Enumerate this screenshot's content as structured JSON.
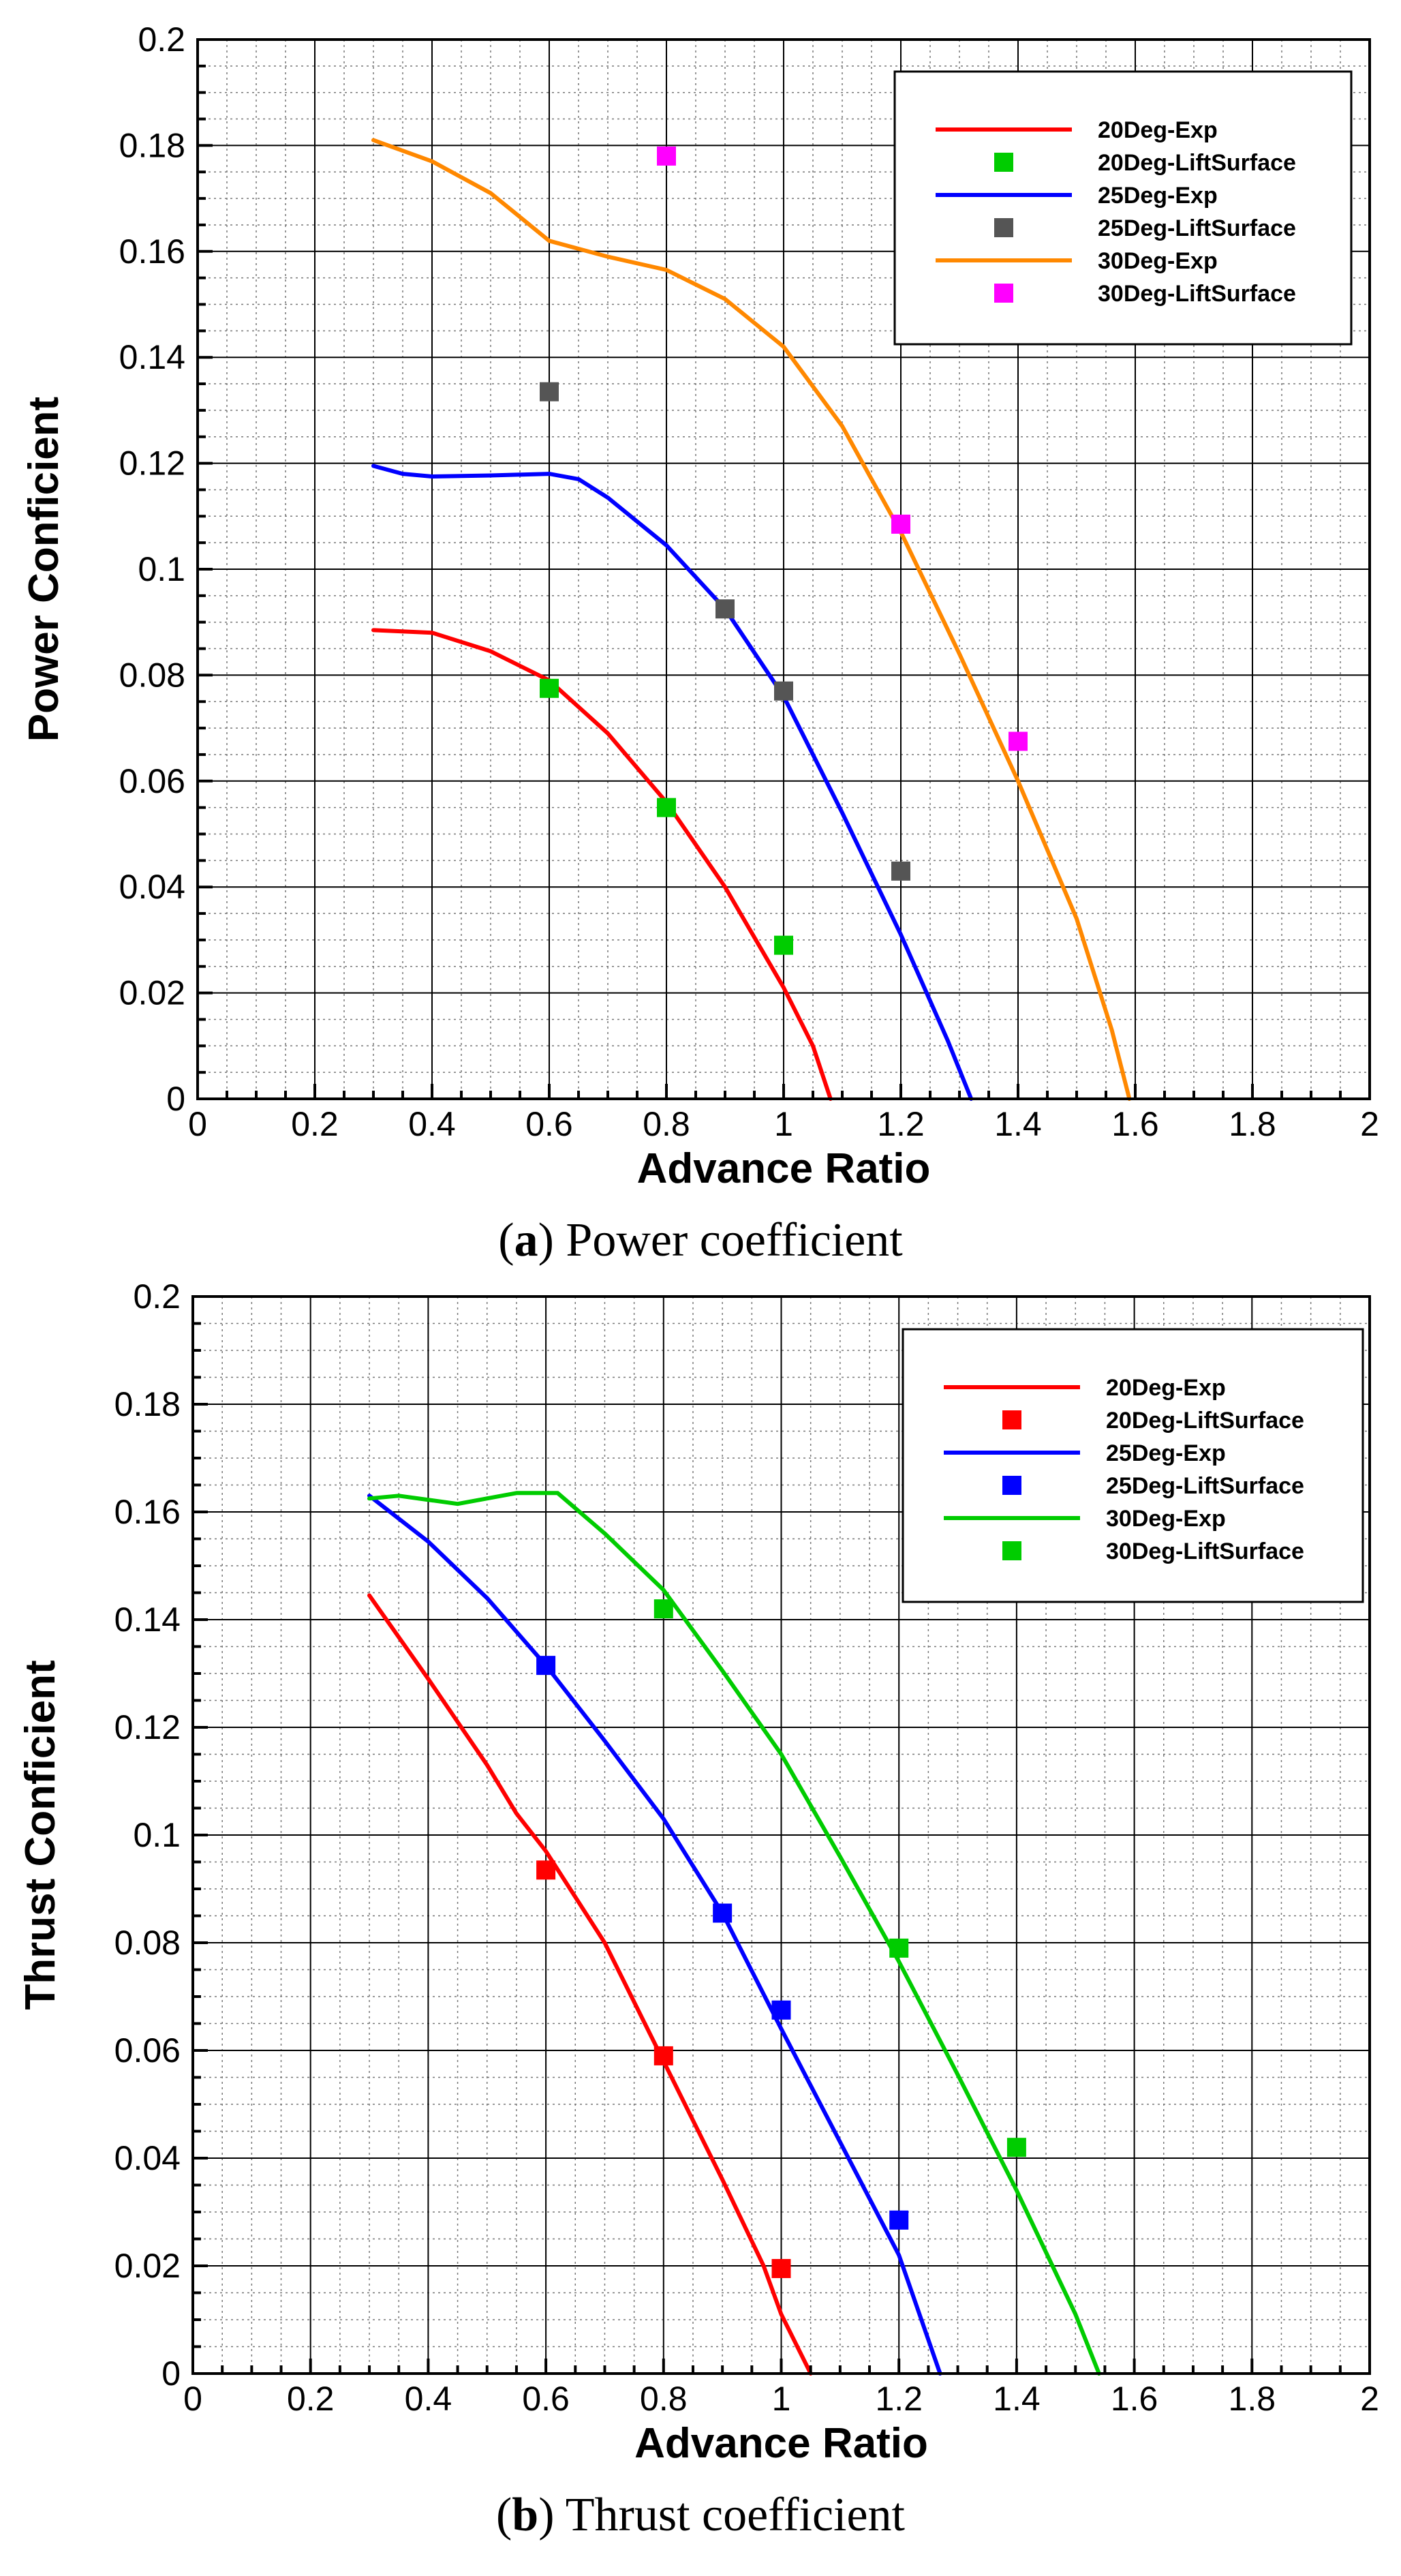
{
  "chart_data": [
    {
      "type": "scatter",
      "id": "a",
      "caption_letter": "a",
      "caption_text": "Power coefficient",
      "xlabel": "Advance Ratio",
      "ylabel": "Power Conficient",
      "xlim": [
        0,
        2
      ],
      "ylim": [
        0,
        0.2
      ],
      "xticks": [
        "0",
        "0.2",
        "0.4",
        "0.6",
        "0.8",
        "1",
        "1.2",
        "1.4",
        "1.6",
        "1.8",
        "2"
      ],
      "yticks": [
        "0",
        "0.02",
        "0.04",
        "0.06",
        "0.08",
        "0.1",
        "0.12",
        "0.14",
        "0.16",
        "0.18",
        "0.2"
      ],
      "grid": true,
      "legend_position": "top-right",
      "series": [
        {
          "name": "20Deg-Exp",
          "kind": "line",
          "color": "#ff0000",
          "points": [
            [
              0.3,
              0.0885
            ],
            [
              0.4,
              0.088
            ],
            [
              0.5,
              0.0845
            ],
            [
              0.6,
              0.079
            ],
            [
              0.7,
              0.069
            ],
            [
              0.8,
              0.056
            ],
            [
              0.9,
              0.04
            ],
            [
              1.0,
              0.021
            ],
            [
              1.05,
              0.01
            ],
            [
              1.08,
              0.0
            ]
          ]
        },
        {
          "name": "20Deg-LiftSurface",
          "kind": "marker",
          "color": "#00cc00",
          "points": [
            [
              0.6,
              0.0775
            ],
            [
              0.8,
              0.055
            ],
            [
              1.0,
              0.029
            ]
          ]
        },
        {
          "name": "25Deg-Exp",
          "kind": "line",
          "color": "#0000ff",
          "points": [
            [
              0.3,
              0.1195
            ],
            [
              0.35,
              0.118
            ],
            [
              0.4,
              0.1175
            ],
            [
              0.5,
              0.1177
            ],
            [
              0.6,
              0.118
            ],
            [
              0.65,
              0.117
            ],
            [
              0.7,
              0.1135
            ],
            [
              0.8,
              0.1045
            ],
            [
              0.9,
              0.0925
            ],
            [
              1.0,
              0.076
            ],
            [
              1.1,
              0.054
            ],
            [
              1.2,
              0.031
            ],
            [
              1.28,
              0.011
            ],
            [
              1.32,
              0.0
            ]
          ]
        },
        {
          "name": "25Deg-LiftSurface",
          "kind": "marker",
          "color": "#555555",
          "points": [
            [
              0.6,
              0.1335
            ],
            [
              0.9,
              0.0925
            ],
            [
              1.0,
              0.077
            ],
            [
              1.2,
              0.043
            ]
          ]
        },
        {
          "name": "30Deg-Exp",
          "kind": "line",
          "color": "#ff8800",
          "points": [
            [
              0.3,
              0.181
            ],
            [
              0.4,
              0.177
            ],
            [
              0.5,
              0.171
            ],
            [
              0.6,
              0.162
            ],
            [
              0.7,
              0.159
            ],
            [
              0.8,
              0.1565
            ],
            [
              0.9,
              0.151
            ],
            [
              1.0,
              0.142
            ],
            [
              1.1,
              0.127
            ],
            [
              1.2,
              0.107
            ],
            [
              1.3,
              0.084
            ],
            [
              1.4,
              0.06
            ],
            [
              1.5,
              0.034
            ],
            [
              1.56,
              0.013
            ],
            [
              1.59,
              0.0
            ]
          ]
        },
        {
          "name": "30Deg-LiftSurface",
          "kind": "marker",
          "color": "#ff00ff",
          "points": [
            [
              0.8,
              0.178
            ],
            [
              1.2,
              0.1085
            ],
            [
              1.4,
              0.0675
            ]
          ]
        }
      ]
    },
    {
      "type": "scatter",
      "id": "b",
      "caption_letter": "b",
      "caption_text": "Thrust coefficient",
      "xlabel": "Advance Ratio",
      "ylabel": "Thrust Conficient",
      "xlim": [
        0,
        2
      ],
      "ylim": [
        0,
        0.2
      ],
      "xticks": [
        "0",
        "0.2",
        "0.4",
        "0.6",
        "0.8",
        "1",
        "1.2",
        "1.4",
        "1.6",
        "1.8",
        "2"
      ],
      "yticks": [
        "0",
        "0.02",
        "0.04",
        "0.06",
        "0.08",
        "0.1",
        "0.12",
        "0.14",
        "0.16",
        "0.18",
        "0.2"
      ],
      "grid": true,
      "legend_position": "top-right",
      "series": [
        {
          "name": "20Deg-Exp",
          "kind": "line",
          "color": "#ff0000",
          "points": [
            [
              0.3,
              0.1445
            ],
            [
              0.4,
              0.129
            ],
            [
              0.5,
              0.113
            ],
            [
              0.55,
              0.104
            ],
            [
              0.6,
              0.097
            ],
            [
              0.7,
              0.08
            ],
            [
              0.8,
              0.058
            ],
            [
              0.9,
              0.036
            ],
            [
              0.97,
              0.02
            ],
            [
              1.0,
              0.011
            ],
            [
              1.05,
              0.0
            ]
          ]
        },
        {
          "name": "20Deg-LiftSurface",
          "kind": "marker",
          "color": "#ff0000",
          "points": [
            [
              0.6,
              0.0935
            ],
            [
              0.8,
              0.059
            ],
            [
              1.0,
              0.0195
            ]
          ]
        },
        {
          "name": "25Deg-Exp",
          "kind": "line",
          "color": "#0000ff",
          "points": [
            [
              0.3,
              0.163
            ],
            [
              0.4,
              0.1545
            ],
            [
              0.5,
              0.144
            ],
            [
              0.6,
              0.1315
            ],
            [
              0.7,
              0.1175
            ],
            [
              0.8,
              0.103
            ],
            [
              0.9,
              0.0855
            ],
            [
              1.0,
              0.064
            ],
            [
              1.1,
              0.043
            ],
            [
              1.2,
              0.022
            ],
            [
              1.27,
              0.0
            ]
          ]
        },
        {
          "name": "25Deg-LiftSurface",
          "kind": "marker",
          "color": "#0000ff",
          "points": [
            [
              0.6,
              0.1315
            ],
            [
              0.9,
              0.0855
            ],
            [
              1.0,
              0.0675
            ],
            [
              1.2,
              0.0285
            ]
          ]
        },
        {
          "name": "30Deg-Exp",
          "kind": "line",
          "color": "#00cc00",
          "points": [
            [
              0.3,
              0.1625
            ],
            [
              0.35,
              0.163
            ],
            [
              0.45,
              0.1615
            ],
            [
              0.55,
              0.1635
            ],
            [
              0.62,
              0.1635
            ],
            [
              0.7,
              0.156
            ],
            [
              0.8,
              0.1455
            ],
            [
              0.9,
              0.1305
            ],
            [
              1.0,
              0.115
            ],
            [
              1.1,
              0.096
            ],
            [
              1.2,
              0.0765
            ],
            [
              1.3,
              0.0555
            ],
            [
              1.4,
              0.034
            ],
            [
              1.5,
              0.011
            ],
            [
              1.54,
              0.0
            ]
          ]
        },
        {
          "name": "30Deg-LiftSurface",
          "kind": "marker",
          "color": "#00cc00",
          "points": [
            [
              0.8,
              0.142
            ],
            [
              1.2,
              0.079
            ],
            [
              1.4,
              0.042
            ]
          ]
        }
      ]
    }
  ]
}
